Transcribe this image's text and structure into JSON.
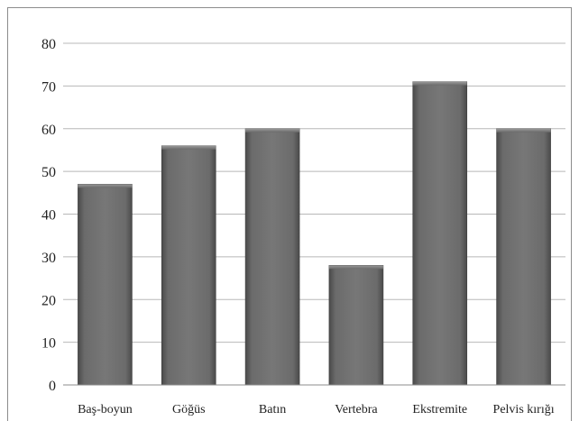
{
  "chart_data": {
    "type": "bar",
    "categories": [
      "Baş-boyun",
      "Göğüs",
      "Batın",
      "Vertebra",
      "Ekstremite",
      "Pelvis kırığı"
    ],
    "values": [
      47,
      56,
      60,
      28,
      71,
      60
    ],
    "ylim": [
      0,
      80
    ],
    "yticks": [
      0,
      10,
      20,
      30,
      40,
      50,
      60,
      70,
      80
    ],
    "ytick_labels": [
      "0",
      "10",
      "20",
      "30",
      "40",
      "50",
      "60",
      "70",
      "80"
    ],
    "grid": true,
    "bar_color": "#5f5f5f",
    "title": "",
    "xlabel": "",
    "ylabel": ""
  }
}
